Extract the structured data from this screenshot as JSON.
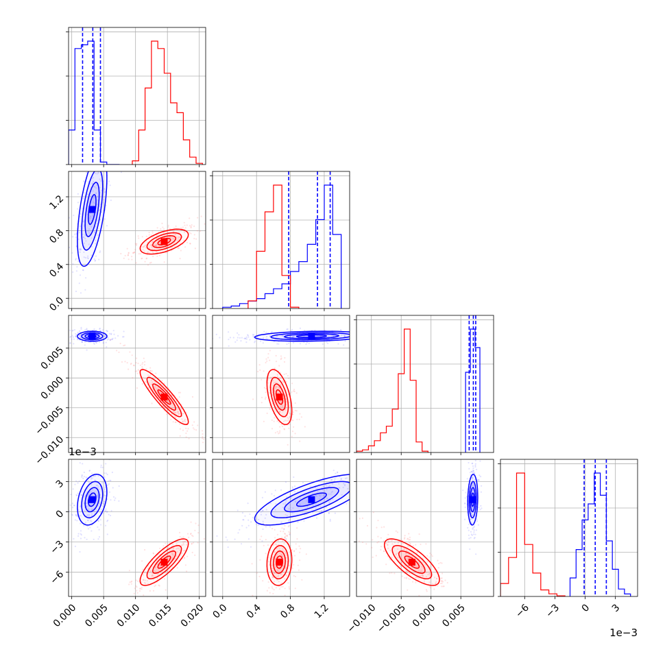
{
  "chart_data": {
    "type": "corner",
    "description_free": true,
    "grid": true,
    "colors": {
      "series_a": "#0000ff",
      "series_b": "#ff0000",
      "grid": "#b0b0b0",
      "axes": "#000000"
    },
    "parameters": [
      {
        "range": [
          -0.0005,
          0.021
        ],
        "ticks": [
          0.0,
          0.005,
          0.01,
          0.015,
          0.02
        ],
        "tick_labels": [
          "0.000",
          "0.005",
          "0.010",
          "0.015",
          "0.020"
        ],
        "offset_label": ""
      },
      {
        "range": [
          -0.12,
          1.5
        ],
        "ticks": [
          0.0,
          0.4,
          0.8,
          1.2
        ],
        "tick_labels": [
          "0.0",
          "0.4",
          "0.8",
          "1.2"
        ],
        "offset_label": ""
      },
      {
        "range": [
          -0.0125,
          0.0105
        ],
        "ticks": [
          -0.01,
          -0.005,
          0.0,
          0.005
        ],
        "tick_labels": [
          "−0.010",
          "−0.005",
          "0.000",
          "0.005"
        ],
        "offset_label": ""
      },
      {
        "range": [
          -0.0084,
          0.0052
        ],
        "ticks": [
          -0.006,
          -0.003,
          0.0,
          0.003
        ],
        "tick_labels": [
          "−6",
          "−3",
          "0",
          "3"
        ],
        "offset_label": "1e−3"
      }
    ],
    "series": [
      {
        "name": "",
        "color": "#0000ff",
        "mean": [
          0.0032,
          1.05,
          0.007,
          0.0012
        ],
        "quantiles": [
          [
            0.0017,
            0.0033,
            0.0045
          ],
          [
            0.78,
            1.12,
            1.27
          ],
          [
            0.0064,
            0.0071,
            0.0075
          ],
          [
            -0.0001,
            0.001,
            0.0021
          ]
        ],
        "hist": [
          {
            "edges": [
              -0.0005,
              0.0005,
              0.0015,
              0.0025,
              0.0035,
              0.0045,
              0.0055,
              0.0065,
              0.0075
            ],
            "counts": [
              0.28,
              0.94,
              0.97,
              1.0,
              0.28,
              0.02,
              0.0,
              0.0
            ]
          },
          {
            "edges": [
              0.0,
              0.1,
              0.2,
              0.3,
              0.4,
              0.5,
              0.6,
              0.7,
              0.8,
              0.9,
              1.0,
              1.1,
              1.2,
              1.3,
              1.4
            ],
            "counts": [
              0.01,
              0.02,
              0.04,
              0.06,
              0.08,
              0.12,
              0.16,
              0.2,
              0.3,
              0.38,
              0.52,
              0.72,
              1.0,
              0.6
            ]
          },
          {
            "edges": [
              0.0058,
              0.0066,
              0.0074,
              0.0082
            ],
            "counts": [
              0.65,
              1.0,
              0.85
            ]
          },
          {
            "edges": [
              -0.0015,
              -0.0009,
              -0.0003,
              0.0003,
              0.0009,
              0.0015,
              0.0021,
              0.0027,
              0.0033,
              0.0039,
              0.0045
            ],
            "counts": [
              0.15,
              0.38,
              0.62,
              0.75,
              1.0,
              0.82,
              0.45,
              0.22,
              0.06,
              0.02
            ]
          }
        ]
      },
      {
        "name": "",
        "color": "#ff0000",
        "mean": [
          0.0145,
          0.67,
          -0.0032,
          -0.005
        ],
        "quantiles": [],
        "hist": [
          {
            "edges": [
              0.0095,
              0.0105,
              0.0115,
              0.0125,
              0.0135,
              0.0145,
              0.0155,
              0.0165,
              0.0175,
              0.0185,
              0.0195,
              0.0205
            ],
            "counts": [
              0.03,
              0.28,
              0.62,
              1.0,
              0.94,
              0.74,
              0.5,
              0.42,
              0.2,
              0.06,
              0.01
            ]
          },
          {
            "edges": [
              0.3,
              0.4,
              0.5,
              0.6,
              0.7,
              0.8,
              0.9
            ],
            "counts": [
              0.06,
              0.45,
              0.76,
              0.97,
              0.26,
              0.01
            ]
          },
          {
            "edges": [
              -0.0125,
              -0.0115,
              -0.0105,
              -0.0095,
              -0.0085,
              -0.0075,
              -0.0065,
              -0.0055,
              -0.0045,
              -0.0035,
              -0.0025,
              -0.0015,
              -0.0005
            ],
            "counts": [
              0.01,
              0.02,
              0.05,
              0.09,
              0.15,
              0.2,
              0.33,
              0.6,
              0.94,
              0.55,
              0.08,
              0.01
            ]
          },
          {
            "edges": [
              -0.0084,
              -0.0076,
              -0.0068,
              -0.006,
              -0.0052,
              -0.0044,
              -0.0036,
              -0.0028,
              -0.002
            ],
            "counts": [
              0.1,
              0.3,
              0.95,
              0.4,
              0.18,
              0.05,
              0.02,
              0.005
            ]
          }
        ]
      }
    ],
    "covariances": {
      "series_a": {
        "sd": [
          0.0011,
          0.32,
          0.0004,
          0.0012
        ],
        "corr": [
          [
            1,
            0.55,
            0.0,
            0.3
          ],
          [
            0.55,
            1,
            0.2,
            0.75
          ],
          [
            0.0,
            0.2,
            1,
            0.1
          ],
          [
            0.3,
            0.75,
            0.1,
            1
          ]
        ]
      },
      "series_b": {
        "sd": [
          0.0018,
          0.07,
          0.0022,
          0.0011
        ],
        "corr": [
          [
            1,
            0.55,
            -0.9,
            0.8
          ],
          [
            0.55,
            1,
            -0.5,
            0.1
          ],
          [
            -0.9,
            -0.5,
            1,
            -0.75
          ],
          [
            0.8,
            0.1,
            -0.75,
            1
          ]
        ]
      }
    }
  }
}
